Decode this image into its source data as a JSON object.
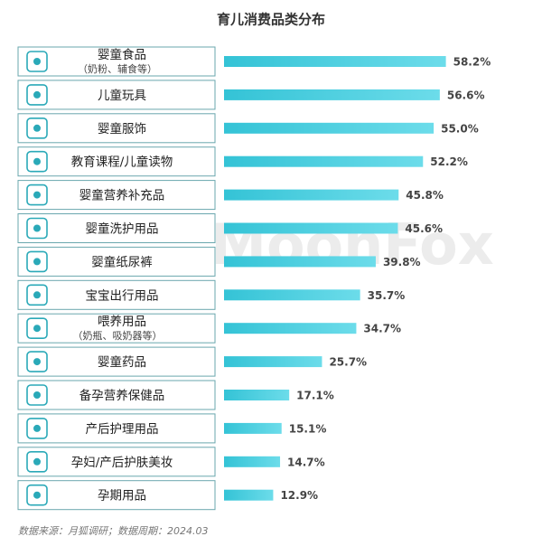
{
  "chart_data": {
    "type": "bar",
    "orientation": "horizontal",
    "title": "育儿消费品类分布",
    "categories": [
      "婴童食品",
      "儿童玩具",
      "婴童服饰",
      "教育课程/儿童读物",
      "婴童营养补充品",
      "婴童洗护用品",
      "婴童纸尿裤",
      "宝宝出行用品",
      "喂养用品",
      "婴童药品",
      "备孕营养保健品",
      "产后护理用品",
      "孕妇/产后护肤美妆",
      "孕期用品"
    ],
    "category_notes": [
      "（奶粉、辅食等）",
      null,
      null,
      null,
      null,
      null,
      null,
      null,
      "（奶瓶、吸奶器等）",
      null,
      null,
      null,
      null,
      null
    ],
    "values": [
      58.2,
      56.6,
      55.0,
      52.2,
      45.8,
      45.6,
      39.8,
      35.7,
      34.7,
      25.7,
      17.1,
      15.1,
      14.7,
      12.9
    ],
    "value_labels": [
      "58.2%",
      "56.6%",
      "55.0%",
      "52.2%",
      "45.8%",
      "45.6%",
      "39.8%",
      "35.7%",
      "34.7%",
      "25.7%",
      "17.1%",
      "15.1%",
      "14.7%",
      "12.9%"
    ],
    "color": "#45cbdc",
    "watermark": "MoonFox",
    "source": "数据来源：月狐调研；数据周期：2024.03"
  }
}
